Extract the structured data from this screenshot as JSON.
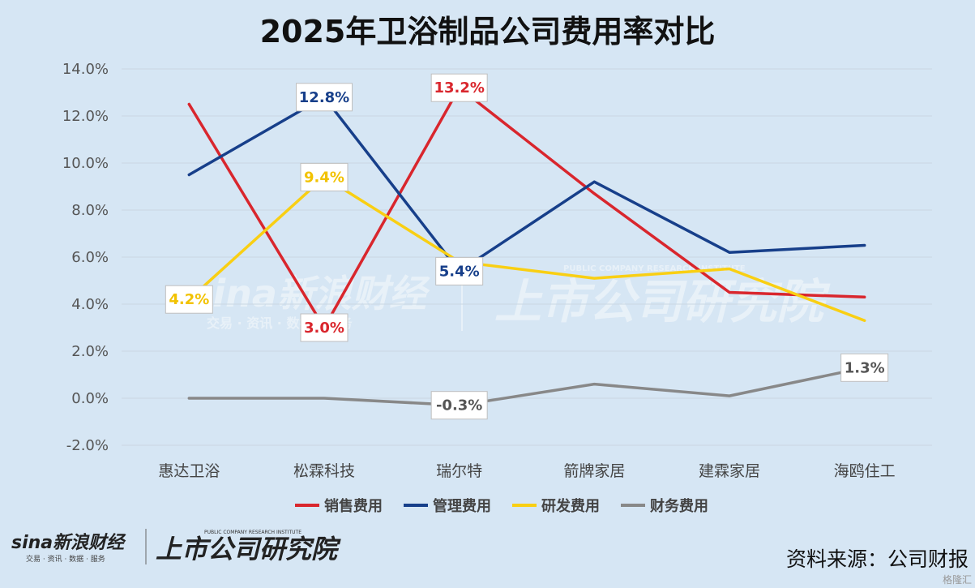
{
  "chart_data": {
    "type": "line",
    "title": "2025年卫浴制品公司费用率对比",
    "categories": [
      "惠达卫浴",
      "松霖科技",
      "瑞尔特",
      "箭牌家居",
      "建霖家居",
      "海鸥住工"
    ],
    "ylim": [
      -2.0,
      14.0
    ],
    "yticks": [
      "-2.0%",
      "0.0%",
      "2.0%",
      "4.0%",
      "6.0%",
      "8.0%",
      "10.0%",
      "12.0%",
      "14.0%"
    ],
    "yticks_values": [
      -2,
      0,
      2,
      4,
      6,
      8,
      10,
      12,
      14
    ],
    "grid": true,
    "legend_position": "bottom",
    "series": [
      {
        "name": "销售费用",
        "color": "#d9262d",
        "values": [
          12.5,
          3.0,
          13.2,
          8.7,
          4.5,
          4.3
        ]
      },
      {
        "name": "管理费用",
        "color": "#173f8a",
        "values": [
          9.5,
          12.8,
          5.4,
          9.2,
          6.2,
          6.5
        ]
      },
      {
        "name": "研发费用",
        "color": "#f9cf13",
        "values": [
          4.2,
          9.4,
          5.8,
          5.1,
          5.5,
          3.3
        ]
      },
      {
        "name": "财务费用",
        "color": "#888888",
        "values": [
          0.0,
          0.0,
          -0.3,
          0.6,
          0.1,
          1.3
        ]
      }
    ],
    "data_labels": [
      {
        "series": 0,
        "index": 1,
        "text": "3.0%"
      },
      {
        "series": 0,
        "index": 2,
        "text": "13.2%"
      },
      {
        "series": 1,
        "index": 1,
        "text": "12.8%"
      },
      {
        "series": 1,
        "index": 2,
        "text": "5.4%"
      },
      {
        "series": 2,
        "index": 0,
        "text": "4.2%"
      },
      {
        "series": 2,
        "index": 1,
        "text": "9.4%"
      },
      {
        "series": 3,
        "index": 2,
        "text": "-0.3%"
      },
      {
        "series": 3,
        "index": 5,
        "text": "1.3%"
      }
    ]
  },
  "source_text": "资料来源：公司财报",
  "watermark": {
    "brand": "sina新浪财经",
    "tagline": "交易 · 资讯 · 数据 · 服务",
    "institute": "上市公司研究院",
    "institute_en": "PUBLIC COMPANY RESEARCH INSTITUTE"
  },
  "corner_mark": "格隆汇"
}
